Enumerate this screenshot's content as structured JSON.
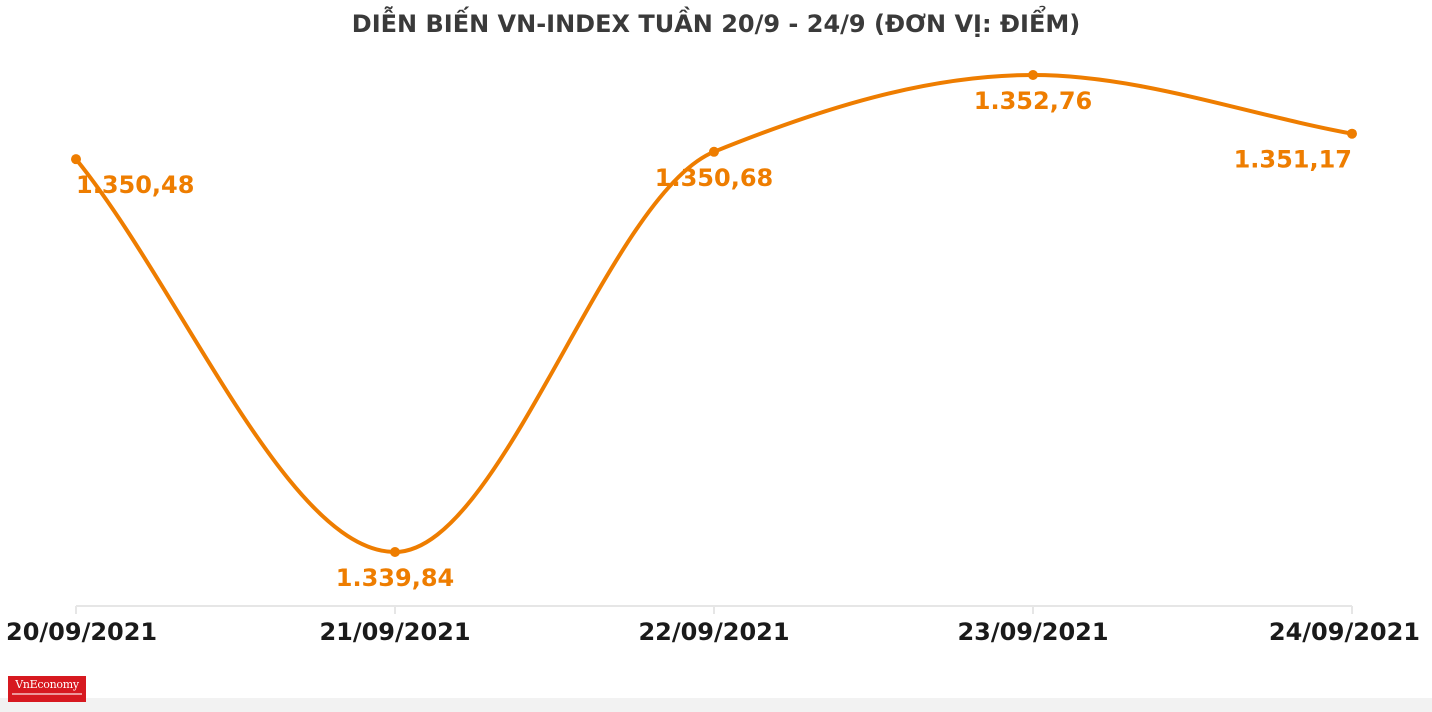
{
  "title": "DIỄN BIẾN VN-INDEX TUẦN 20/9 - 24/9 (ĐƠN VỊ: ĐIỂM)",
  "colors": {
    "line": "#ee7d00",
    "label": "#ee7d00",
    "axis_text": "#1a1a1a",
    "axis_line": "#e6e6e6",
    "title": "#3a3a3a",
    "logo_bg": "#d71920"
  },
  "logo": {
    "text": "VnEconomy"
  },
  "chart_data": {
    "type": "line",
    "title": "DIỄN BIẾN VN-INDEX TUẦN 20/9 - 24/9 (ĐƠN VỊ: ĐIỂM)",
    "xlabel": "",
    "ylabel": "",
    "categories": [
      "20/09/2021",
      "21/09/2021",
      "22/09/2021",
      "23/09/2021",
      "24/09/2021"
    ],
    "values": [
      1350.48,
      1339.84,
      1350.68,
      1352.76,
      1351.17
    ],
    "data_labels": [
      "1.350,48",
      "1.339,84",
      "1.350,68",
      "1.352,76",
      "1.351,17"
    ],
    "smooth": true,
    "grid": false,
    "legend": "none"
  }
}
